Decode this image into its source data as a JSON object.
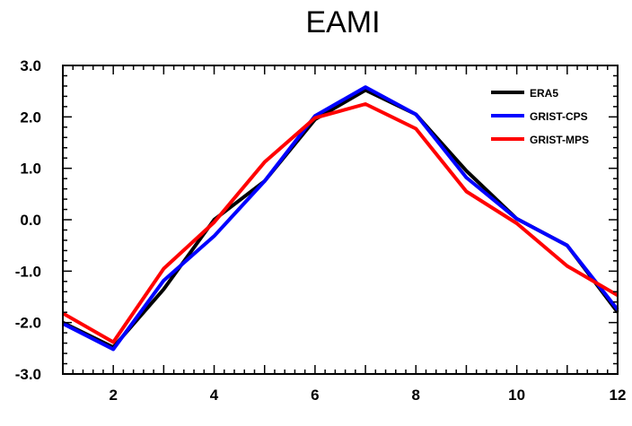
{
  "chart_data": {
    "type": "line",
    "title": "EAMI",
    "xlabel": "",
    "ylabel": "",
    "x": [
      1,
      2,
      3,
      4,
      5,
      6,
      7,
      8,
      9,
      10,
      11,
      12
    ],
    "xlim": [
      1,
      12
    ],
    "ylim": [
      -3.0,
      3.0
    ],
    "x_ticks": [
      2,
      4,
      6,
      8,
      10,
      12
    ],
    "x_tick_labels": [
      "2",
      "4",
      "6",
      "8",
      "10",
      "12"
    ],
    "y_ticks": [
      -3.0,
      -2.0,
      -1.0,
      0.0,
      1.0,
      2.0,
      3.0
    ],
    "y_tick_labels": [
      "-3.0",
      "-2.0",
      "-1.0",
      "0.0",
      "1.0",
      "2.0",
      "3.0"
    ],
    "grid": false,
    "legend_position": "top-right",
    "series": [
      {
        "name": "ERA5",
        "color": "#000000",
        "values": [
          -2.0,
          -2.48,
          -1.35,
          0.0,
          0.75,
          1.95,
          2.52,
          2.05,
          0.95,
          0.02,
          -0.5,
          -1.8
        ]
      },
      {
        "name": "GRIST-CPS",
        "color": "#0000ff",
        "values": [
          -2.02,
          -2.52,
          -1.18,
          -0.32,
          0.75,
          2.02,
          2.58,
          2.05,
          0.82,
          0.02,
          -0.5,
          -1.75
        ]
      },
      {
        "name": "GRIST-MPS",
        "color": "#ff0000",
        "values": [
          -1.82,
          -2.38,
          -0.95,
          -0.05,
          1.12,
          1.98,
          2.25,
          1.77,
          0.55,
          -0.07,
          -0.9,
          -1.47
        ]
      }
    ]
  }
}
